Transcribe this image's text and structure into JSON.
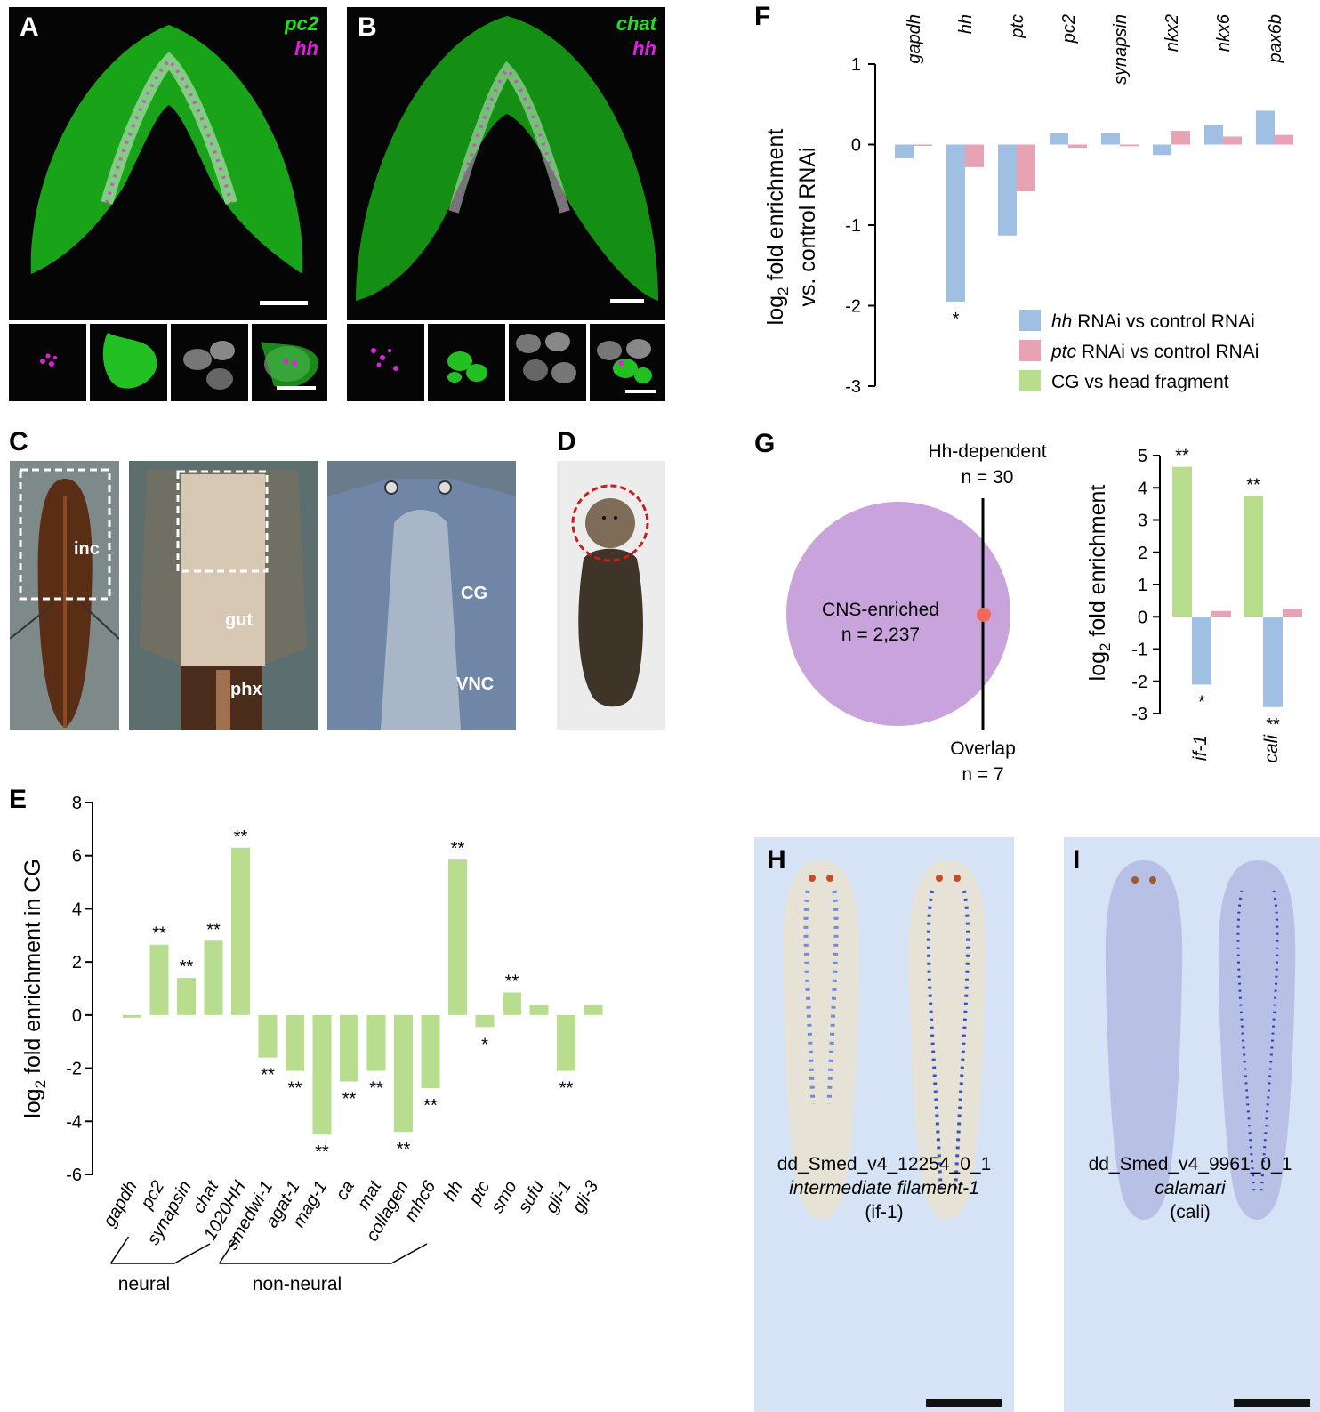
{
  "panels": {
    "A": {
      "label": "A",
      "marker1": "pc2",
      "marker2": "hh"
    },
    "B": {
      "label": "B",
      "marker1": "chat",
      "marker2": "hh"
    },
    "C": {
      "label": "C",
      "labels": [
        "inc",
        "gut",
        "phx",
        "CG",
        "VNC"
      ]
    },
    "D": {
      "label": "D"
    },
    "E": {
      "label": "E"
    },
    "F": {
      "label": "F"
    },
    "G": {
      "label": "G",
      "venn": {
        "set1_name": "CNS-enriched",
        "set1_n": "n = 2,237",
        "set2_name": "Hh-dependent",
        "set2_n": "n = 30",
        "overlap_name": "Overlap",
        "overlap_n": "n = 7"
      }
    },
    "H": {
      "label": "H",
      "id": "dd_Smed_v4_12254_0_1",
      "name": "intermediate filament-1",
      "abbr": "(if-1)"
    },
    "I": {
      "label": "I",
      "id": "dd_Smed_v4_9961_0_1",
      "name": "calamari",
      "abbr": "(cali)"
    }
  },
  "colors": {
    "green": "#b9dd8f",
    "blue": "#9fbfe3",
    "pink": "#e7a2b4",
    "purple": "#c9a3dc",
    "signal_green": "#22e022",
    "signal_magenta": "#e020e0"
  },
  "chart_data": [
    {
      "id": "E",
      "type": "bar",
      "ylabel": "log2 fold enrichment in CG",
      "ylim": [
        -6,
        8
      ],
      "yticks": [
        "8",
        "6",
        "4",
        "2",
        "0",
        "-2",
        "-4",
        "-6"
      ],
      "categories": [
        "gapdh",
        "pc2",
        "synapsin",
        "chat",
        "1020HH",
        "smedwi-1",
        "agat-1",
        "mag-1",
        "ca",
        "mat",
        "collagen",
        "mhc6",
        "hh",
        "ptc",
        "smo",
        "sufu",
        "gli-1",
        "gli-3"
      ],
      "values": [
        -0.1,
        2.65,
        1.4,
        2.8,
        6.3,
        -1.6,
        -2.1,
        -4.5,
        -2.5,
        -2.1,
        -4.4,
        -2.75,
        5.85,
        -0.45,
        0.85,
        0.4,
        -2.1,
        0.4
      ],
      "significance": [
        "",
        "**",
        "**",
        "**",
        "**",
        "**",
        "**",
        "**",
        "**",
        "**",
        "**",
        "**",
        "**",
        "*",
        "**",
        "",
        "**",
        ""
      ],
      "groups": [
        {
          "name": "neural",
          "from": "gapdh",
          "to": "chat"
        },
        {
          "name": "non-neural",
          "from": "1020HH",
          "to": "mhc6"
        }
      ]
    },
    {
      "id": "F",
      "type": "bar",
      "ylabel_line1": "log2 fold enrichment",
      "ylabel_line2": "vs. control RNAi",
      "ylim": [
        -3,
        1
      ],
      "yticks": [
        "1",
        "0",
        "-1",
        "-2",
        "-3"
      ],
      "categories": [
        "gapdh",
        "hh",
        "ptc",
        "pc2",
        "synapsin",
        "nkx2",
        "nkx6",
        "pax6b"
      ],
      "series": [
        {
          "name": "hh RNAi vs control RNAi",
          "values": [
            -0.17,
            -1.95,
            -1.13,
            0.14,
            0.14,
            -0.13,
            0.24,
            0.42
          ],
          "significance": [
            "",
            "*",
            "",
            "",
            "",
            "",
            "",
            ""
          ]
        },
        {
          "name": "ptc RNAi vs control RNAi",
          "values": [
            0.0,
            -0.28,
            -0.58,
            -0.04,
            -0.02,
            0.17,
            0.1,
            0.12
          ],
          "significance": [
            "",
            "",
            "",
            "",
            "",
            "",
            "",
            ""
          ]
        }
      ],
      "legend": [
        "hh RNAi vs control RNAi",
        "ptc RNAi vs control RNAi",
        "CG vs head fragment"
      ]
    },
    {
      "id": "G",
      "type": "bar",
      "ylabel": "log2 fold enrichment",
      "ylim": [
        -3,
        5
      ],
      "yticks": [
        "5",
        "4",
        "3",
        "2",
        "1",
        "0",
        "-1",
        "-2",
        "-3"
      ],
      "categories": [
        "if-1",
        "cali"
      ],
      "series": [
        {
          "name": "CG vs head fragment",
          "values": [
            4.65,
            3.75
          ],
          "significance": [
            "**",
            "**"
          ]
        },
        {
          "name": "hh RNAi vs control RNAi",
          "values": [
            -2.1,
            -2.8
          ],
          "significance": [
            "*",
            "**"
          ]
        },
        {
          "name": "ptc RNAi vs control RNAi",
          "values": [
            0.18,
            0.25
          ],
          "significance": [
            "",
            ""
          ]
        }
      ]
    }
  ]
}
